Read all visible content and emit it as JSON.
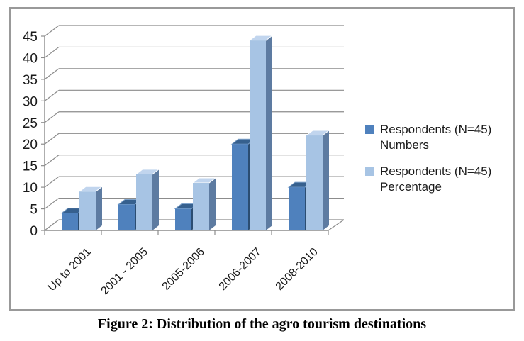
{
  "chart_data": {
    "type": "bar",
    "projection": "3d",
    "title": "",
    "xlabel": "",
    "ylabel": "",
    "categories": [
      "Up to 2001",
      "2001 - 2005",
      "2005-2006",
      "2006-2007",
      "2008-2010"
    ],
    "series": [
      {
        "name": "Respondents (N=45) Numbers",
        "values": [
          4,
          6,
          5,
          20,
          10
        ]
      },
      {
        "name": "Respondents (N=45) Percentage",
        "values": [
          9,
          13,
          11,
          44,
          22
        ]
      }
    ],
    "ylim": [
      0,
      45
    ],
    "ytick_step": 5,
    "ytick_labels": [
      "0",
      "5",
      "10",
      "15",
      "20",
      "25",
      "30",
      "35",
      "40",
      "45"
    ],
    "grid": true,
    "legend_position": "right"
  },
  "colors": {
    "series1_front": "#4F81BD",
    "series1_top": "#36608E",
    "series1_top_stroke": "#7FA3CB",
    "series1_side": "#2B4D72",
    "series2_front": "#A7C4E4",
    "series2_top": "#C1D5EE",
    "series2_top_stroke": "#FFFFFF",
    "series2_side": "#5D7BA1",
    "gridline": "#8C8C8C",
    "axis": "#8C8C8C",
    "frame_border": "#999999",
    "text": "#1A1A1A"
  },
  "legend": {
    "items": [
      {
        "swatch": "series1",
        "line1": "Respondents (N=45)",
        "line2": "Numbers"
      },
      {
        "swatch": "series2",
        "line1": "Respondents (N=45)",
        "line2": "Percentage"
      }
    ]
  },
  "caption": "Figure 2: Distribution of the agro tourism destinations"
}
